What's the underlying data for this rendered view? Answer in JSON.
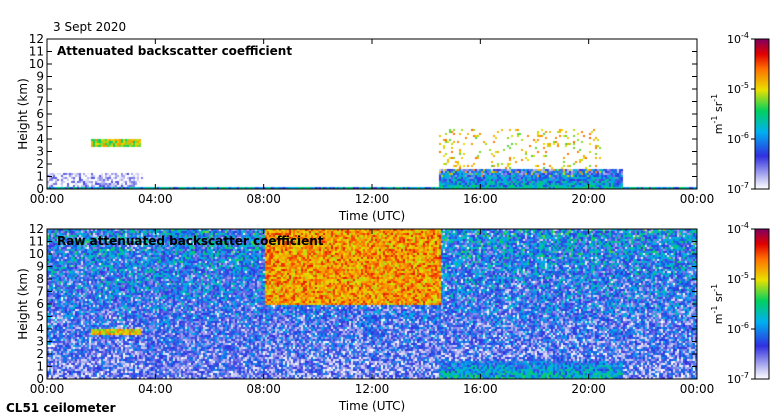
{
  "date_label": "3 Sept 2020",
  "footer_label": "CL51 ceilometer",
  "chart_data": [
    {
      "type": "heatmap",
      "title": "Attenuated backscatter coefficient",
      "xlabel": "Time (UTC)",
      "ylabel": "Height (km)",
      "x_ticks": [
        "00:00",
        "04:00",
        "08:00",
        "12:00",
        "16:00",
        "20:00",
        "00:00"
      ],
      "x_range_hours": [
        0,
        24
      ],
      "y_ticks": [
        0,
        1,
        2,
        3,
        4,
        5,
        6,
        7,
        8,
        9,
        10,
        11,
        12
      ],
      "ylim": [
        0,
        12
      ],
      "colorbar": {
        "scale": "log",
        "range": [
          1e-07,
          0.0001
        ],
        "tick_labels": [
          {
            "base": "10",
            "exp": "-4"
          },
          {
            "base": "10",
            "exp": "-5"
          },
          {
            "base": "10",
            "exp": "-6"
          },
          {
            "base": "10",
            "exp": "-7"
          }
        ],
        "unit": {
          "m": "m",
          "m_exp": "-1",
          "sr": "sr",
          "sr_exp": "-1"
        }
      },
      "features": [
        {
          "kind": "cloud_layer",
          "t_start_h": 1.6,
          "t_end_h": 3.4,
          "base_km": 3.4,
          "top_km": 4.1,
          "level_log": -5.2
        },
        {
          "kind": "aerosol_layer",
          "t_start_h": 0,
          "t_end_h": 3.5,
          "base_km": 0,
          "top_km": 1.3,
          "level_log": -6.9
        },
        {
          "kind": "surface_layer",
          "t_start_h": 0,
          "t_end_h": 24,
          "base_km": 0,
          "top_km": 0.25,
          "level_log": -6.0
        },
        {
          "kind": "boundary_layer",
          "t_start_h": 14.4,
          "t_end_h": 21.2,
          "base_km": 0,
          "top_km": 1.7,
          "level_log": -6.4
        },
        {
          "kind": "cloud_tops",
          "t_start_h": 14.4,
          "t_end_h": 20.4,
          "base_km": 1.0,
          "top_km": 4.9,
          "level_log": -5.0
        }
      ]
    },
    {
      "type": "heatmap",
      "title": "Raw attenuated backscatter coefficient",
      "xlabel": "Time (UTC)",
      "ylabel": "Height (km)",
      "x_ticks": [
        "00:00",
        "04:00",
        "08:00",
        "12:00",
        "16:00",
        "20:00",
        "00:00"
      ],
      "x_range_hours": [
        0,
        24
      ],
      "y_ticks": [
        0,
        1,
        2,
        3,
        4,
        5,
        6,
        7,
        8,
        9,
        10,
        11,
        12
      ],
      "ylim": [
        0,
        12
      ],
      "colorbar": {
        "scale": "log",
        "range": [
          1e-07,
          0.0001
        ],
        "tick_labels": [
          {
            "base": "10",
            "exp": "-4"
          },
          {
            "base": "10",
            "exp": "-5"
          },
          {
            "base": "10",
            "exp": "-6"
          },
          {
            "base": "10",
            "exp": "-7"
          }
        ],
        "unit": {
          "m": "m",
          "m_exp": "-1",
          "sr": "sr",
          "sr_exp": "-1"
        }
      },
      "features": [
        {
          "kind": "noise_background",
          "t_start_h": 0,
          "t_end_h": 24,
          "base_km": 0,
          "top_km": 12,
          "level_log": -6.6
        },
        {
          "kind": "high_noise_daytime",
          "t_start_h": 8.0,
          "t_end_h": 14.5,
          "base_km": 6,
          "top_km": 12,
          "level_log": -4.8
        },
        {
          "kind": "low_noise_gap",
          "t_start_h": 3.7,
          "t_end_h": 8.0,
          "base_km": 0,
          "top_km": 12,
          "level_log": -6.9
        },
        {
          "kind": "cloud_layer",
          "t_start_h": 1.6,
          "t_end_h": 3.4,
          "base_km": 3.6,
          "top_km": 4.1,
          "level_log": -5.0
        },
        {
          "kind": "boundary_layer",
          "t_start_h": 14.4,
          "t_end_h": 21.2,
          "base_km": 0,
          "top_km": 1.5,
          "level_log": -6.3
        }
      ]
    }
  ]
}
